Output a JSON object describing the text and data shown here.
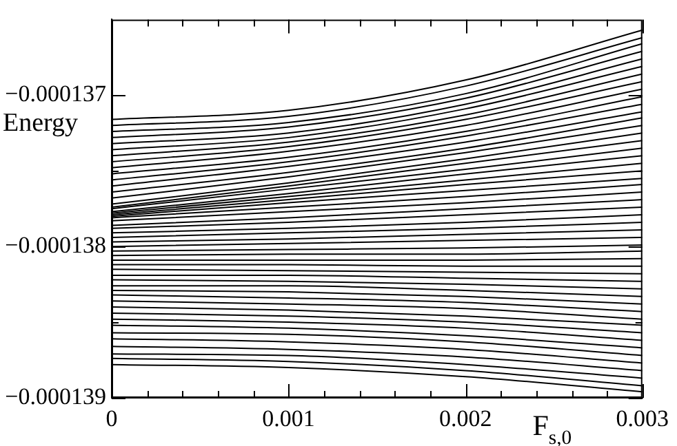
{
  "chart_data": {
    "type": "line",
    "xlabel": "F$_{s,0}$",
    "ylabel": "Energy",
    "x": [
      0,
      0.001,
      0.002,
      0.003
    ],
    "xlim": [
      0,
      0.003
    ],
    "ylim": [
      -0.000139,
      -0.0001365
    ],
    "xticks": [
      0,
      {
        "value": 0.0002,
        "label": null
      },
      {
        "value": 0.0004,
        "label": null
      },
      {
        "value": 0.0006,
        "label": null
      },
      {
        "value": 0.0008,
        "label": null
      },
      0.001,
      {
        "value": 0.0012,
        "label": null
      },
      {
        "value": 0.0014,
        "label": null
      },
      {
        "value": 0.0016,
        "label": null
      },
      {
        "value": 0.0018,
        "label": null
      },
      0.002,
      {
        "value": 0.0022,
        "label": null
      },
      {
        "value": 0.0024,
        "label": null
      },
      {
        "value": 0.0026,
        "label": null
      },
      {
        "value": 0.0028,
        "label": null
      },
      0.003
    ],
    "yticks": [
      {
        "value": -0.000139,
        "label": "−0.000139"
      },
      {
        "value": -0.0001385,
        "label": null
      },
      {
        "value": -0.000138,
        "label": "−0.000138"
      },
      {
        "value": -0.0001375,
        "label": null
      },
      {
        "value": -0.000137,
        "label": "−0.000137"
      }
    ],
    "grid": false,
    "legend": false,
    "marker": "none",
    "line_style": "solid",
    "series": [
      {
        "color": "#000000",
        "values": [
          -0.00013716,
          -0.0001371,
          -0.0001369,
          -0.00013657
        ]
      },
      {
        "color": "#000000",
        "values": [
          -0.0001372,
          -0.00013714,
          -0.00013694,
          -0.00013662
        ]
      },
      {
        "color": "#000000",
        "values": [
          -0.00013724,
          -0.00013718,
          -0.00013699,
          -0.00013666
        ]
      },
      {
        "color": "#000000",
        "values": [
          -0.00013728,
          -0.00013721,
          -0.00013702,
          -0.00013671
        ]
      },
      {
        "color": "#000000",
        "values": [
          -0.00013732,
          -0.00013725,
          -0.00013706,
          -0.00013676
        ]
      },
      {
        "color": "#000000",
        "values": [
          -0.00013736,
          -0.00013728,
          -0.00013709,
          -0.00013681
        ]
      },
      {
        "color": "#000000",
        "values": [
          -0.0001374,
          -0.00013731,
          -0.00013713,
          -0.00013686
        ]
      },
      {
        "color": "#000000",
        "values": [
          -0.00013744,
          -0.00013734,
          -0.00013716,
          -0.00013691
        ]
      },
      {
        "color": "#000000",
        "values": [
          -0.00013748,
          -0.00013737,
          -0.0001372,
          -0.00013696
        ]
      },
      {
        "color": "#000000",
        "values": [
          -0.00013752,
          -0.00013741,
          -0.00013724,
          -0.00013701
        ]
      },
      {
        "color": "#000000",
        "values": [
          -0.00013756,
          -0.00013744,
          -0.00013727,
          -0.00013706
        ]
      },
      {
        "color": "#000000",
        "values": [
          -0.0001376,
          -0.00013747,
          -0.00013731,
          -0.00013711
        ]
      },
      {
        "color": "#000000",
        "values": [
          -0.00013764,
          -0.00013751,
          -0.00013735,
          -0.00013715
        ]
      },
      {
        "color": "#000000",
        "values": [
          -0.00013768,
          -0.00013754,
          -0.00013738,
          -0.0001372
        ]
      },
      {
        "color": "#000000",
        "values": [
          -0.00013772,
          -0.00013758,
          -0.00013742,
          -0.00013725
        ]
      },
      {
        "color": "#000000",
        "values": [
          -0.00013774,
          -0.0001376,
          -0.00013745,
          -0.0001373
        ]
      },
      {
        "color": "#000000",
        "values": [
          -0.00013775,
          -0.00013762,
          -0.00013749,
          -0.00013735
        ]
      },
      {
        "color": "#000000",
        "values": [
          -0.00013777,
          -0.00013765,
          -0.00013752,
          -0.0001374
        ]
      },
      {
        "color": "#000000",
        "values": [
          -0.00013778,
          -0.00013767,
          -0.00013756,
          -0.00013745
        ]
      },
      {
        "color": "#000000",
        "values": [
          -0.00013779,
          -0.00013769,
          -0.00013759,
          -0.0001375
        ]
      },
      {
        "color": "#000000",
        "values": [
          -0.0001378,
          -0.00013771,
          -0.00013763,
          -0.00013755
        ]
      },
      {
        "color": "#000000",
        "values": [
          -0.00013781,
          -0.00013774,
          -0.00013767,
          -0.00013759
        ]
      },
      {
        "color": "#000000",
        "values": [
          -0.00013783,
          -0.00013777,
          -0.00013771,
          -0.00013764
        ]
      },
      {
        "color": "#000000",
        "values": [
          -0.00013786,
          -0.00013781,
          -0.00013775,
          -0.00013769
        ]
      },
      {
        "color": "#000000",
        "values": [
          -0.00013788,
          -0.00013784,
          -0.00013779,
          -0.00013774
        ]
      },
      {
        "color": "#000000",
        "values": [
          -0.00013791,
          -0.00013788,
          -0.00013784,
          -0.00013779
        ]
      },
      {
        "color": "#000000",
        "values": [
          -0.00013794,
          -0.00013791,
          -0.00013788,
          -0.00013784
        ]
      },
      {
        "color": "#000000",
        "values": [
          -0.00013797,
          -0.00013795,
          -0.00013792,
          -0.00013789
        ]
      },
      {
        "color": "#000000",
        "values": [
          -0.000138,
          -0.00013798,
          -0.00013796,
          -0.00013794
        ]
      },
      {
        "color": "#000000",
        "values": [
          -0.00013803,
          -0.00013802,
          -0.00013801,
          -0.00013799
        ]
      },
      {
        "color": "#000000",
        "values": [
          -0.00013806,
          -0.00013805,
          -0.00013805,
          -0.00013803
        ]
      },
      {
        "color": "#000000",
        "values": [
          -0.00013809,
          -0.00013809,
          -0.00013809,
          -0.00013808
        ]
      },
      {
        "color": "#000000",
        "values": [
          -0.00013812,
          -0.00013812,
          -0.00013813,
          -0.00013813
        ]
      },
      {
        "color": "#000000",
        "values": [
          -0.00013815,
          -0.00013816,
          -0.00013817,
          -0.00013818
        ]
      },
      {
        "color": "#000000",
        "values": [
          -0.00013819,
          -0.00013819,
          -0.00013821,
          -0.00013823
        ]
      },
      {
        "color": "#000000",
        "values": [
          -0.00013822,
          -0.00013823,
          -0.00013825,
          -0.00013828
        ]
      },
      {
        "color": "#000000",
        "values": [
          -0.00013826,
          -0.00013826,
          -0.00013829,
          -0.00013833
        ]
      },
      {
        "color": "#000000",
        "values": [
          -0.00013829,
          -0.0001383,
          -0.00013833,
          -0.00013838
        ]
      },
      {
        "color": "#000000",
        "values": [
          -0.00013832,
          -0.00013834,
          -0.00013837,
          -0.00013843
        ]
      },
      {
        "color": "#000000",
        "values": [
          -0.00013836,
          -0.00013838,
          -0.00013841,
          -0.00013848
        ]
      },
      {
        "color": "#000000",
        "values": [
          -0.0001384,
          -0.00013842,
          -0.00013846,
          -0.00013852
        ]
      },
      {
        "color": "#000000",
        "values": [
          -0.00013844,
          -0.00013846,
          -0.0001385,
          -0.00013857
        ]
      },
      {
        "color": "#000000",
        "values": [
          -0.00013848,
          -0.0001385,
          -0.00013854,
          -0.00013862
        ]
      },
      {
        "color": "#000000",
        "values": [
          -0.00013852,
          -0.00013854,
          -0.00013859,
          -0.00013867
        ]
      },
      {
        "color": "#000000",
        "values": [
          -0.00013857,
          -0.00013858,
          -0.00013863,
          -0.00013872
        ]
      },
      {
        "color": "#000000",
        "values": [
          -0.00013861,
          -0.00013863,
          -0.00013868,
          -0.00013877
        ]
      },
      {
        "color": "#000000",
        "values": [
          -0.00013866,
          -0.00013868,
          -0.00013873,
          -0.00013882
        ]
      },
      {
        "color": "#000000",
        "values": [
          -0.00013871,
          -0.00013872,
          -0.00013878,
          -0.00013887
        ]
      },
      {
        "color": "#000000",
        "values": [
          -0.00013874,
          -0.00013876,
          -0.00013882,
          -0.00013892
        ]
      },
      {
        "color": "#000000",
        "values": [
          -0.00013878,
          -0.0001388,
          -0.00013886,
          -0.00013896
        ]
      }
    ]
  }
}
